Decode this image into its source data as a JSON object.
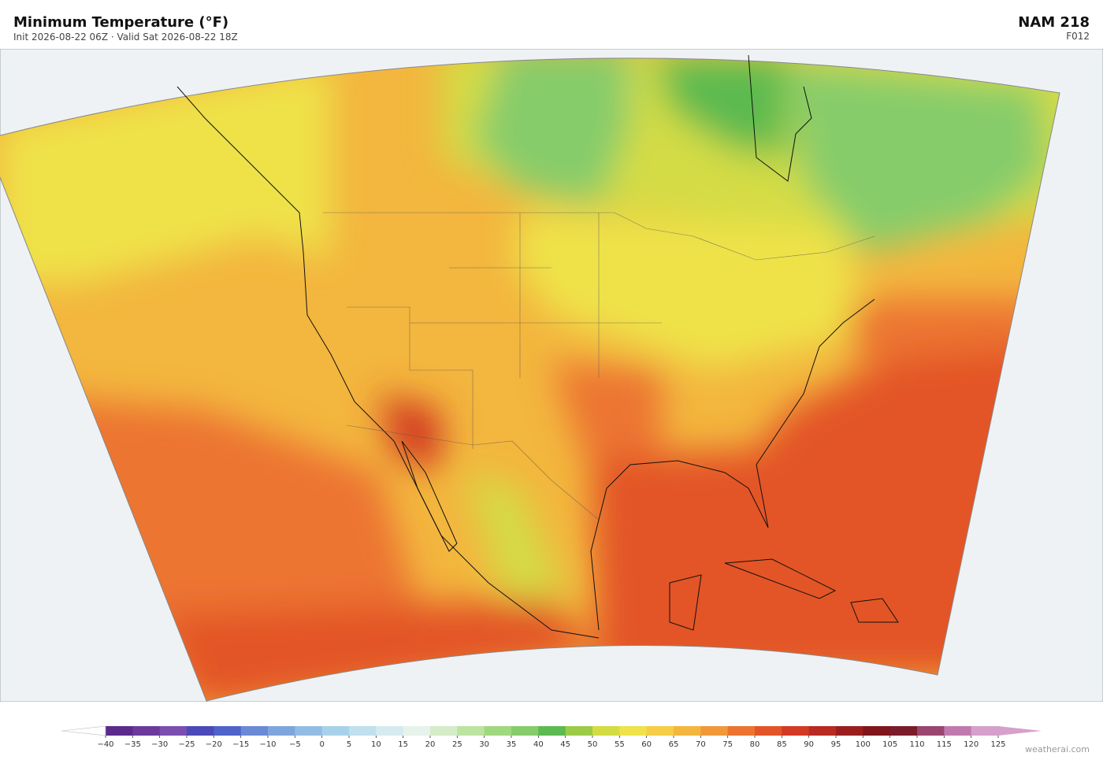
{
  "header": {
    "title": "Minimum Temperature  (°F)",
    "subtitle": "Init 2026-08-22 06Z  ·  Valid Sat 2026-08-22 18Z",
    "model": "NAM  218",
    "forecast_hour": "F012"
  },
  "colorbar": {
    "ticks": [
      {
        "value": -40,
        "label": "−40"
      },
      {
        "value": -35,
        "label": "−35"
      },
      {
        "value": -30,
        "label": "−30"
      },
      {
        "value": -25,
        "label": "−25"
      },
      {
        "value": -20,
        "label": "−20"
      },
      {
        "value": -15,
        "label": "−15"
      },
      {
        "value": -10,
        "label": "−10"
      },
      {
        "value": -5,
        "label": "−5"
      },
      0,
      5,
      10,
      15,
      20,
      25,
      30,
      35,
      40,
      45,
      50,
      55,
      60,
      65,
      70,
      75,
      80,
      85,
      90,
      95,
      100,
      105,
      110,
      115,
      120,
      125
    ],
    "colors": [
      "#5b2a8c",
      "#6b3a9c",
      "#7a4fb0",
      "#4a4ab8",
      "#4f63c8",
      "#6a8ad6",
      "#7fa6dc",
      "#92bde3",
      "#a8d2ea",
      "#c0e0ee",
      "#d6ebf0",
      "#e6f3ec",
      "#d5ecc8",
      "#bce3a0",
      "#a0d880",
      "#86cc6a",
      "#5cba50",
      "#9ccb48",
      "#d4dc44",
      "#efe24a",
      "#f5cd46",
      "#f3b63e",
      "#f0983a",
      "#ec7430",
      "#e35428",
      "#d23a24",
      "#b82a22",
      "#9a1e1e",
      "#80161c",
      "#7a1c2a",
      "#9a4670",
      "#c07ab0",
      "#d6a0cc"
    ],
    "extend_colors": [
      "#ffffff",
      "#d6a0cc"
    ]
  },
  "footer": {
    "watermark": "weatherai.com"
  }
}
